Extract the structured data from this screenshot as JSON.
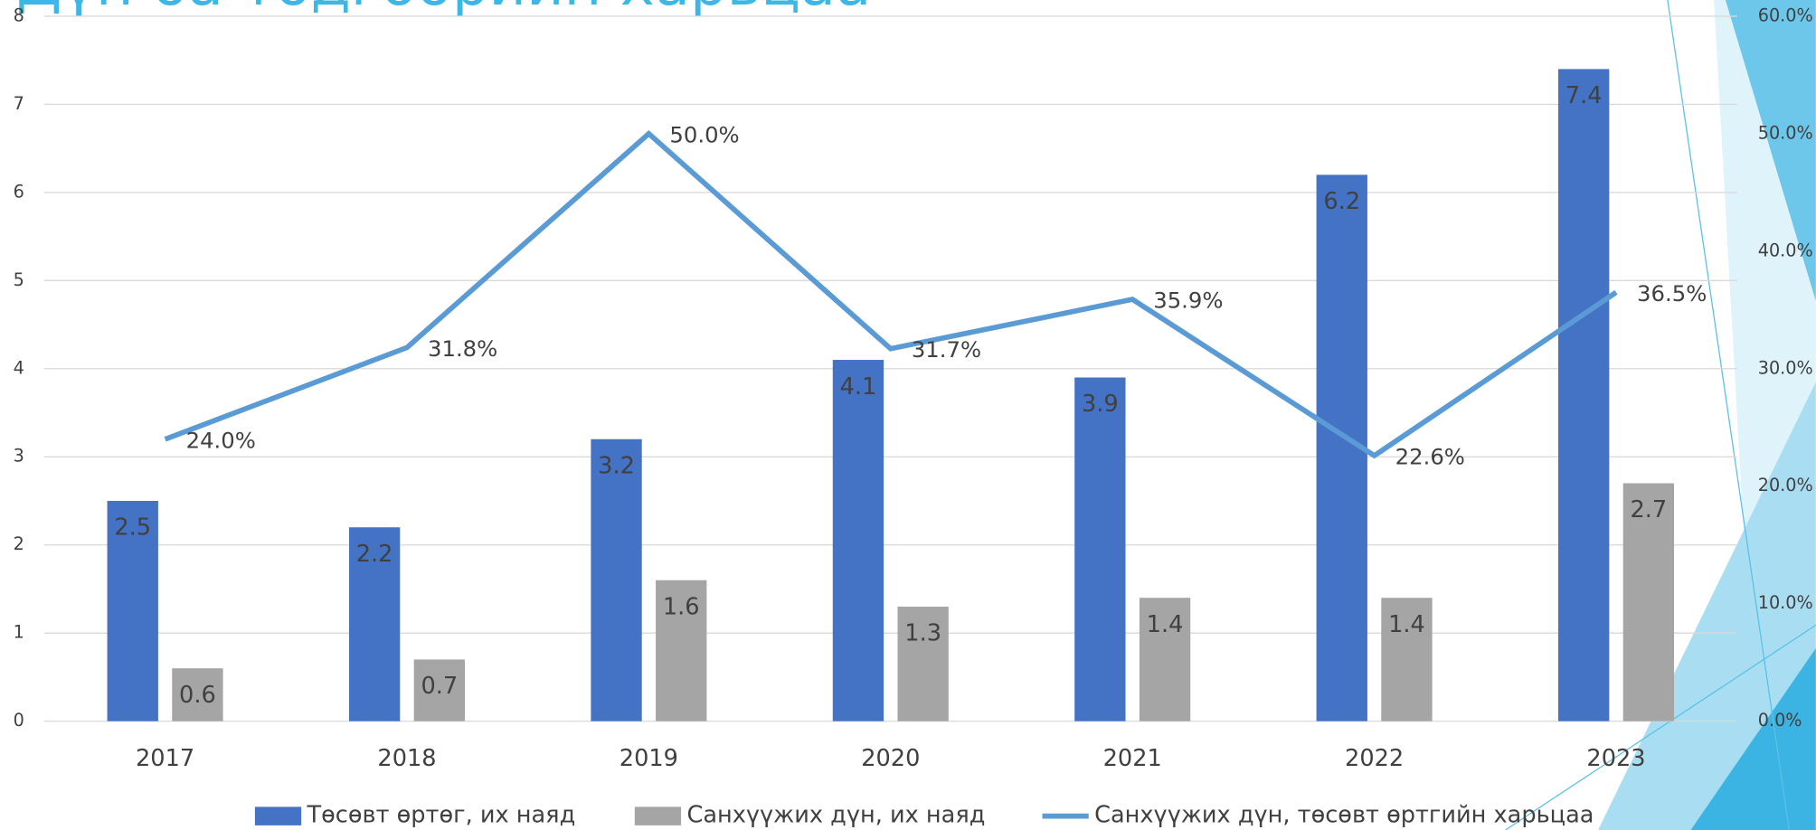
{
  "chart_data": {
    "type": "bar",
    "title": "Дүн ба төдгөөрийн харьцаа",
    "categories": [
      "2017",
      "2018",
      "2019",
      "2020",
      "2021",
      "2022",
      "2023"
    ],
    "series": [
      {
        "name": "Төсөвт өртөг, их наяд",
        "type": "bar",
        "color": "#4472c4",
        "values": [
          2.5,
          2.2,
          3.2,
          4.1,
          3.9,
          6.2,
          7.4
        ]
      },
      {
        "name": "Санхүүжих дүн, их наяд",
        "type": "bar",
        "color": "#a5a5a5",
        "values": [
          0.6,
          0.7,
          1.6,
          1.3,
          1.4,
          1.4,
          2.7
        ]
      },
      {
        "name": "Санхүүжих дүн, төсөвт өртгийн харьцаа",
        "type": "line",
        "axis": "y2",
        "color": "#5b9bd5",
        "values": [
          24.0,
          31.8,
          50.0,
          31.7,
          35.9,
          22.6,
          36.5
        ],
        "value_labels": [
          "24.0%",
          "31.8%",
          "50.0%",
          "31.7%",
          "35.9%",
          "22.6%",
          "36.5%"
        ]
      }
    ],
    "ylim": [
      0,
      8
    ],
    "yticks": [
      0,
      1,
      2,
      3,
      4,
      5,
      6,
      7,
      8
    ],
    "y2lim": [
      0,
      60
    ],
    "y2ticks": [
      {
        "value": 0,
        "label": "0.0%"
      },
      {
        "value": 10,
        "label": "10.0%"
      },
      {
        "value": 20,
        "label": "20.0%"
      },
      {
        "value": 30,
        "label": "30.0%"
      },
      {
        "value": 40,
        "label": "40.0%"
      },
      {
        "value": 50,
        "label": "50.0%"
      },
      {
        "value": 60,
        "label": "60.0%"
      }
    ],
    "grid": true,
    "legend": "bottom"
  }
}
